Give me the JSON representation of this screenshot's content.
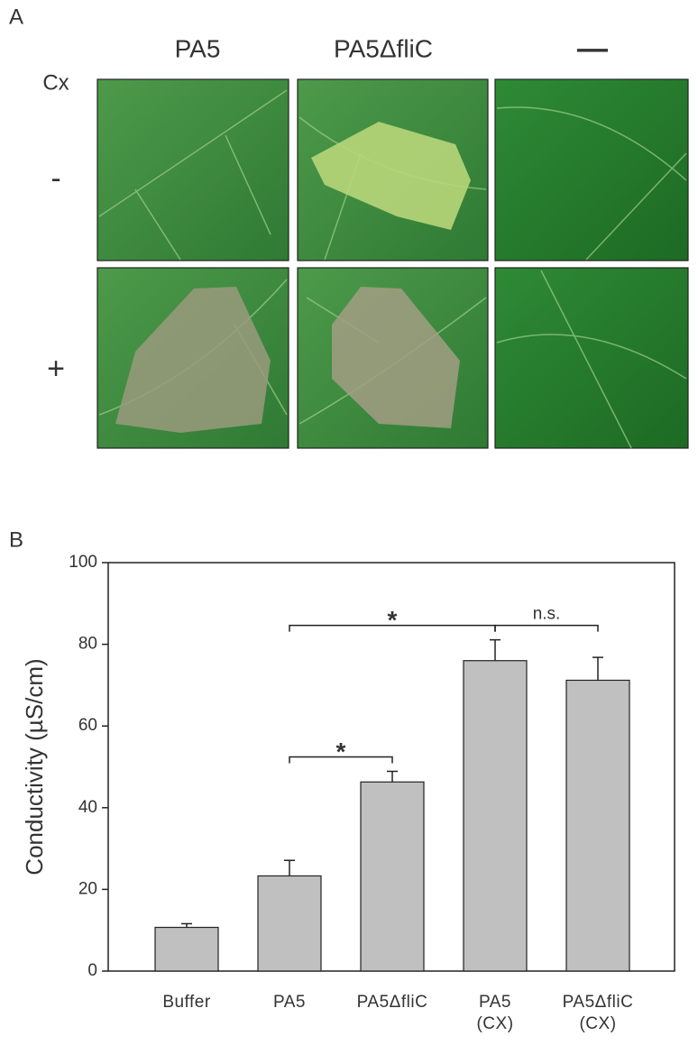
{
  "panel_a": {
    "label": "A",
    "columns": [
      "PA5",
      "PA5ΔfliC",
      "—"
    ],
    "row_header": "Cx",
    "rows": [
      "-",
      "+"
    ]
  },
  "panel_b_label": "B",
  "chart_data": {
    "type": "bar",
    "ylabel": "Conductivity (µS/cm)",
    "categories": [
      "Buffer",
      "PA5",
      "PA5ΔfliC",
      "PA5\n(CX)",
      "PA5ΔfliC\n(CX)"
    ],
    "values": [
      10.7,
      23.3,
      46.3,
      76,
      71.2
    ],
    "errors": [
      0.9,
      3.8,
      2.6,
      5.1,
      5.6
    ],
    "color": "#c0c0c0",
    "ylim": [
      0,
      100
    ],
    "yticks": [
      0,
      20,
      40,
      60,
      80,
      100
    ],
    "annotations": [
      {
        "text": "*",
        "from": 1,
        "to": 3
      },
      {
        "text": "*",
        "from": 1,
        "to": 2
      },
      {
        "text": "n.s.",
        "from": 3,
        "to": 4
      }
    ]
  }
}
